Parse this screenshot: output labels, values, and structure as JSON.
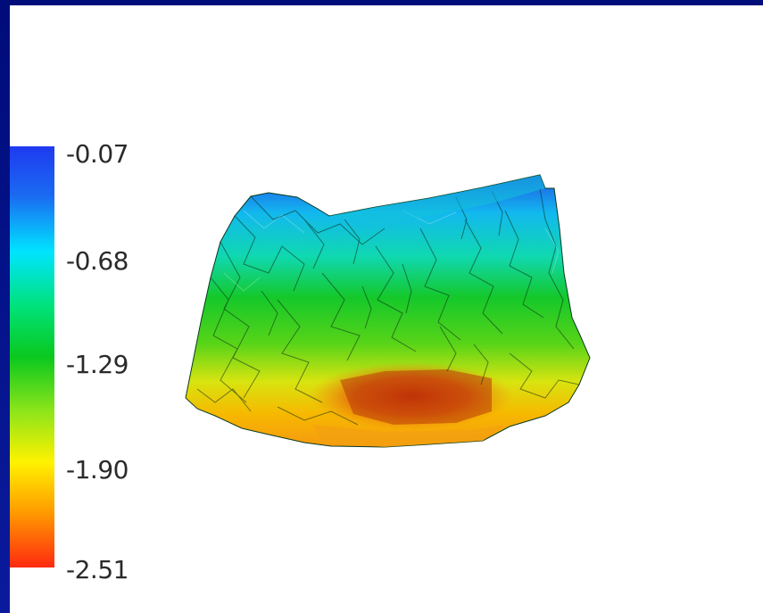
{
  "scalar_bar": {
    "ticks": [
      "-0.07",
      "-0.68",
      "-1.29",
      "-1.90",
      "-2.51"
    ],
    "colors_top_to_bottom": [
      "#1f3af0",
      "#00e4ff",
      "#0ac81e",
      "#fff200",
      "#ff2a10"
    ]
  },
  "surface": {
    "icon": "3d-terrain-surface",
    "description_colors": [
      "#2050e0",
      "#10d8e8",
      "#20c020",
      "#f0e000",
      "#e03010"
    ]
  }
}
